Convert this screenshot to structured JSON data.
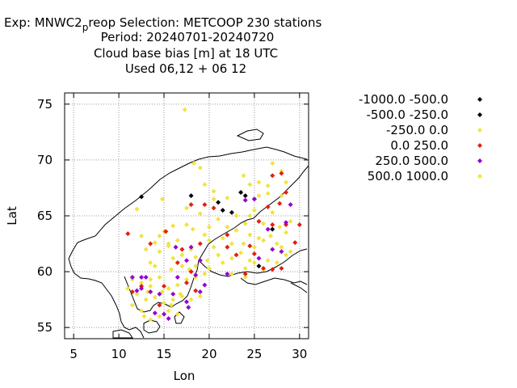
{
  "title": {
    "line1_prefix": "Exp: MNWC2",
    "line1_sub": "p",
    "line1_suffix": "reop   Selection: METCOOP    230 stations",
    "line2": "Period: 20240701-20240720",
    "line3": "Cloud base bias [m] at  18 UTC",
    "line4": "Used  06,12  + 06 12"
  },
  "chart_data": {
    "type": "scatter",
    "xlabel": "Lon",
    "ylabel": "Lat",
    "xlim": [
      4,
      31
    ],
    "ylim": [
      54,
      76
    ],
    "xticks": [
      5,
      10,
      15,
      20,
      25,
      30
    ],
    "yticks": [
      55,
      60,
      65,
      70,
      75
    ],
    "grid": true,
    "legend_position": "right",
    "colors": {
      "black": "#000000",
      "yellow": "#f0e442",
      "red": "#e51e10",
      "purple": "#9400d3"
    },
    "series": [
      {
        "name": "-1000.0 -500.0",
        "color": "#000000",
        "points": []
      },
      {
        "name": "-500.0 -250.0",
        "color": "#000000",
        "points": [
          [
            12.5,
            66.7
          ],
          [
            18.0,
            66.8
          ],
          [
            21.0,
            66.2
          ],
          [
            21.5,
            65.5
          ],
          [
            22.5,
            65.3
          ],
          [
            23.5,
            67.1
          ],
          [
            24.0,
            66.8
          ],
          [
            25.0,
            66.5
          ],
          [
            27.0,
            63.8
          ],
          [
            25.5,
            60.5
          ]
        ]
      },
      {
        "name": "-250.0 0.0",
        "color": "#f0e442",
        "points": [
          [
            17.3,
            74.5
          ],
          [
            14.8,
            66.5
          ],
          [
            18.3,
            69.7
          ],
          [
            19.0,
            69.3
          ],
          [
            24.5,
            67.8
          ],
          [
            25.5,
            66.8
          ],
          [
            26.5,
            67.7
          ],
          [
            28.0,
            66.8
          ],
          [
            28.0,
            69.0
          ],
          [
            28.5,
            68.0
          ],
          [
            25.5,
            68.0
          ],
          [
            23.8,
            68.6
          ],
          [
            27.0,
            69.7
          ],
          [
            19.5,
            67.8
          ],
          [
            20.5,
            67.2
          ],
          [
            17.5,
            65.7
          ],
          [
            19.0,
            65.2
          ],
          [
            20.0,
            64.0
          ],
          [
            18.2,
            63.8
          ],
          [
            16.0,
            64.1
          ],
          [
            14.5,
            63.2
          ],
          [
            13.0,
            62.0
          ],
          [
            12.5,
            63.2
          ],
          [
            15.5,
            62.5
          ],
          [
            17.0,
            61.5
          ],
          [
            16.5,
            62.8
          ],
          [
            18.0,
            62.0
          ],
          [
            19.5,
            63.3
          ],
          [
            20.5,
            62.2
          ],
          [
            21.5,
            63.0
          ],
          [
            22.5,
            62.5
          ],
          [
            23.5,
            61.7
          ],
          [
            25.0,
            62.2
          ],
          [
            26.0,
            62.8
          ],
          [
            27.5,
            62.5
          ],
          [
            28.5,
            61.5
          ],
          [
            24.5,
            61.0
          ],
          [
            26.5,
            61.0
          ],
          [
            27.5,
            60.8
          ],
          [
            29.0,
            61.8
          ],
          [
            14.5,
            61.8
          ],
          [
            13.5,
            60.8
          ],
          [
            15.8,
            60.2
          ],
          [
            17.0,
            60.5
          ],
          [
            18.5,
            60.5
          ],
          [
            20.0,
            60.3
          ],
          [
            21.5,
            60.8
          ],
          [
            22.5,
            61.2
          ],
          [
            24.0,
            60.3
          ],
          [
            25.0,
            60.8
          ],
          [
            26.0,
            60.2
          ],
          [
            11.5,
            59.3
          ],
          [
            12.5,
            59.0
          ],
          [
            13.5,
            58.7
          ],
          [
            14.5,
            59.5
          ],
          [
            15.5,
            58.5
          ],
          [
            16.5,
            58.8
          ],
          [
            17.5,
            59.3
          ],
          [
            18.5,
            59.5
          ],
          [
            19.5,
            59.8
          ],
          [
            12.0,
            58.0
          ],
          [
            13.0,
            57.5
          ],
          [
            14.0,
            57.7
          ],
          [
            15.0,
            57.2
          ],
          [
            16.0,
            57.5
          ],
          [
            17.0,
            57.8
          ],
          [
            18.0,
            57.5
          ],
          [
            11.5,
            57.0
          ],
          [
            12.5,
            56.5
          ],
          [
            13.5,
            55.7
          ],
          [
            14.5,
            56.0
          ],
          [
            15.5,
            56.5
          ],
          [
            16.5,
            56.2
          ],
          [
            24.0,
            59.5
          ],
          [
            29.0,
            64.5
          ],
          [
            28.5,
            63.5
          ],
          [
            15.0,
            63.6
          ],
          [
            17.5,
            64.2
          ],
          [
            21.0,
            64.7
          ],
          [
            22.0,
            64.0
          ],
          [
            23.0,
            63.7
          ],
          [
            24.5,
            63.3
          ],
          [
            26.0,
            64.3
          ],
          [
            27.0,
            65.3
          ],
          [
            20.5,
            66.5
          ],
          [
            16.8,
            58.0
          ],
          [
            19.0,
            57.8
          ],
          [
            13.5,
            59.3
          ],
          [
            22.5,
            59.8
          ],
          [
            14.0,
            60.5
          ],
          [
            11.0,
            58.5
          ],
          [
            12.8,
            56.0
          ],
          [
            18.5,
            61.3
          ],
          [
            21.0,
            61.5
          ],
          [
            25.5,
            63.0
          ],
          [
            27.8,
            64.0
          ],
          [
            23.0,
            65.0
          ],
          [
            24.0,
            64.3
          ],
          [
            25.0,
            65.5
          ],
          [
            22.0,
            66.6
          ],
          [
            26.5,
            67.0
          ],
          [
            20.0,
            62.8
          ],
          [
            16.0,
            61.2
          ],
          [
            14.8,
            58.2
          ],
          [
            13.2,
            58.2
          ],
          [
            15.8,
            57.0
          ],
          [
            17.8,
            60.2
          ],
          [
            19.8,
            61.0
          ],
          [
            23.8,
            62.5
          ],
          [
            28.0,
            62.2
          ],
          [
            26.8,
            63.2
          ],
          [
            24.5,
            65.0
          ]
        ]
      },
      {
        "name": "0.0 250.0",
        "color": "#e51e10",
        "points": [
          [
            11.0,
            63.4
          ],
          [
            13.5,
            62.5
          ],
          [
            15.2,
            63.6
          ],
          [
            18.0,
            66.0
          ],
          [
            19.5,
            66.0
          ],
          [
            20.5,
            65.7
          ],
          [
            22.0,
            62.2
          ],
          [
            23.0,
            61.5
          ],
          [
            24.5,
            62.3
          ],
          [
            25.5,
            64.5
          ],
          [
            26.5,
            65.8
          ],
          [
            27.0,
            68.6
          ],
          [
            28.0,
            68.8
          ],
          [
            28.5,
            67.1
          ],
          [
            27.8,
            66.1
          ],
          [
            27.0,
            64.2
          ],
          [
            28.5,
            64.2
          ],
          [
            29.5,
            62.6
          ],
          [
            30.0,
            64.2
          ],
          [
            24.0,
            59.8
          ],
          [
            26.0,
            60.3
          ],
          [
            27.0,
            60.2
          ],
          [
            11.5,
            58.2
          ],
          [
            12.5,
            58.7
          ],
          [
            14.5,
            57.0
          ],
          [
            15.0,
            58.7
          ],
          [
            17.5,
            59.0
          ],
          [
            18.0,
            60.0
          ],
          [
            18.5,
            58.3
          ],
          [
            16.5,
            60.8
          ],
          [
            17.0,
            62.0
          ],
          [
            19.0,
            62.5
          ],
          [
            22.0,
            63.3
          ],
          [
            25.0,
            61.6
          ],
          [
            28.0,
            60.3
          ]
        ]
      },
      {
        "name": "250.0 500.0",
        "color": "#9400d3",
        "points": [
          [
            11.5,
            59.5
          ],
          [
            12.5,
            59.5
          ],
          [
            12.0,
            58.3
          ],
          [
            13.0,
            59.5
          ],
          [
            14.5,
            58.0
          ],
          [
            15.0,
            56.2
          ],
          [
            16.0,
            58.0
          ],
          [
            16.5,
            59.5
          ],
          [
            17.5,
            61.0
          ],
          [
            18.0,
            62.2
          ],
          [
            18.5,
            59.7
          ],
          [
            19.0,
            61.0
          ],
          [
            19.5,
            58.8
          ],
          [
            12.5,
            58.5
          ],
          [
            13.5,
            58.2
          ],
          [
            16.3,
            62.2
          ],
          [
            17.5,
            57.3
          ],
          [
            17.7,
            56.8
          ],
          [
            19.0,
            58.2
          ],
          [
            22.0,
            59.8
          ],
          [
            24.0,
            66.4
          ],
          [
            25.0,
            66.5
          ],
          [
            26.5,
            63.8
          ],
          [
            27.0,
            62.0
          ],
          [
            28.0,
            61.8
          ],
          [
            28.5,
            64.4
          ],
          [
            29.0,
            66.0
          ],
          [
            25.5,
            61.2
          ],
          [
            14.0,
            56.3
          ],
          [
            15.5,
            55.8
          ]
        ]
      },
      {
        "name": "500.0 1000.0",
        "color": "#f0e442",
        "points": [
          [
            12.0,
            65.6
          ],
          [
            15.5,
            62.3
          ],
          [
            14.0,
            62.6
          ]
        ]
      }
    ]
  }
}
